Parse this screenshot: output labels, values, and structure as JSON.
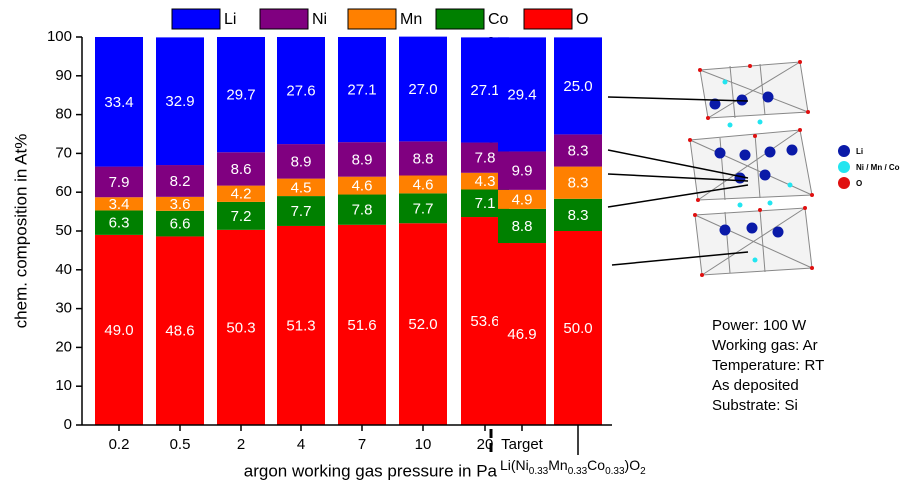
{
  "chart_data": {
    "type": "stacked_bar",
    "y_label": "chem. composition in At%",
    "x_label": "argon working gas pressure in Pa",
    "formula": [
      "Li(Ni",
      "0.33",
      "Mn",
      "0.33",
      "Co",
      "0.33",
      ")O",
      "2"
    ],
    "categories": [
      "0.2",
      "0.5",
      "2",
      "4",
      "7",
      "10",
      "20",
      "Target",
      null
    ],
    "ylim": [
      0,
      100
    ],
    "yticks": [
      0,
      10,
      20,
      30,
      40,
      50,
      60,
      70,
      80,
      90,
      100
    ],
    "series": [
      {
        "name": "Li",
        "color": "#0000ff",
        "values": [
          33.4,
          32.9,
          29.7,
          27.6,
          27.1,
          27.0,
          27.1,
          29.4,
          25.0
        ],
        "value_labels": [
          "33.4",
          "32.9",
          "29.7",
          "27.6",
          "27.1",
          "27.0",
          "27.1",
          "29.4",
          "25.0"
        ]
      },
      {
        "name": "Ni",
        "color": "#800080",
        "values": [
          7.9,
          8.2,
          8.6,
          8.9,
          8.9,
          8.8,
          7.8,
          9.9,
          8.3
        ],
        "value_labels": [
          "7.9",
          "8.2",
          "8.6",
          "8.9",
          "8.9",
          "8.8",
          "7.8",
          "9.9",
          "8.3"
        ]
      },
      {
        "name": "Mn",
        "color": "#ff8000",
        "values": [
          3.4,
          3.6,
          4.2,
          4.5,
          4.6,
          4.6,
          4.3,
          4.9,
          8.3
        ],
        "value_labels": [
          "3.4",
          "3.6",
          "4.2",
          "4.5",
          "4.6",
          "4.6",
          "4.3",
          "4.9",
          "8.3"
        ]
      },
      {
        "name": "Co",
        "color": "#008000",
        "values": [
          6.3,
          6.6,
          7.2,
          7.7,
          7.8,
          7.7,
          7.1,
          8.8,
          8.3
        ],
        "value_labels": [
          "6.3",
          "6.6",
          "7.2",
          "7.7",
          "7.8",
          "7.7",
          "7.1",
          "8.8",
          "8.3"
        ]
      },
      {
        "name": "O",
        "color": "#ff0000",
        "values": [
          49.0,
          48.6,
          50.3,
          51.3,
          51.6,
          52.0,
          53.6,
          46.9,
          50.0
        ],
        "value_labels": [
          "49.0",
          "48.6",
          "50.3",
          "51.3",
          "51.6",
          "52.0",
          "53.6",
          "46.9",
          "50.0"
        ]
      }
    ],
    "annotations": [
      "Power: 100 W",
      "Working gas: Ar",
      "Temperature: RT",
      "As deposited",
      "Substrate: Si"
    ],
    "structure_legend": [
      {
        "label": "Li",
        "color": "#0a1aa8"
      },
      {
        "label": "Ni / Mn / Co",
        "color": "#22e5f0"
      },
      {
        "label": "O",
        "color": "#e01010"
      }
    ]
  }
}
